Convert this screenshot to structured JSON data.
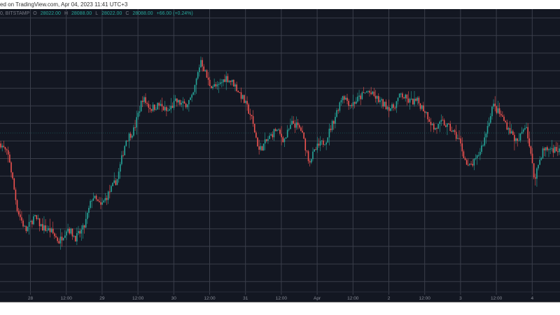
{
  "header": {
    "published_text": "ed on TradingView.com, Apr 04, 2023 11:41 UTC+3"
  },
  "legend": {
    "symbol_text": "0, BITSTAMP",
    "open_label": "O",
    "open": "28022.00",
    "high_label": "H",
    "high": "28088.00",
    "low_label": "L",
    "low": "28022.00",
    "close_label": "C",
    "close": "28088.00",
    "change": "+66.00 (+0.24%)"
  },
  "colors": {
    "background": "#131722",
    "grid": "#3a3e4a",
    "up": "#26a69a",
    "down": "#ef5350",
    "price_line": "#26a69a"
  },
  "chart_data": {
    "type": "candlestick",
    "x_tick_labels": [
      "28",
      "12:00",
      "29",
      "12:00",
      "30",
      "12:00",
      "31",
      "12:00",
      "Apr",
      "12:00",
      "2",
      "12:00",
      "3",
      "12:00",
      "4"
    ],
    "last_price": 28088,
    "close_path": [
      27968,
      27808,
      27208,
      26968,
      27128,
      27008,
      26968,
      26848,
      27008,
      26888,
      27008,
      27368,
      27248,
      27408,
      27568,
      28008,
      28128,
      28488,
      28368,
      28408,
      28328,
      28448,
      28408,
      28488,
      28928,
      28648,
      28608,
      28728,
      28648,
      28488,
      28288,
      27888,
      28008,
      28128,
      28008,
      28208,
      28128,
      27768,
      27928,
      28008,
      28248,
      28528,
      28408,
      28488,
      28568,
      28488,
      28408,
      28368,
      28528,
      28448,
      28448,
      28328,
      28128,
      28208,
      28128,
      28008,
      27688,
      27768,
      28008,
      28408,
      28288,
      28128,
      27968,
      28208,
      27568,
      27888,
      27912,
      27888
    ],
    "grid": true
  }
}
